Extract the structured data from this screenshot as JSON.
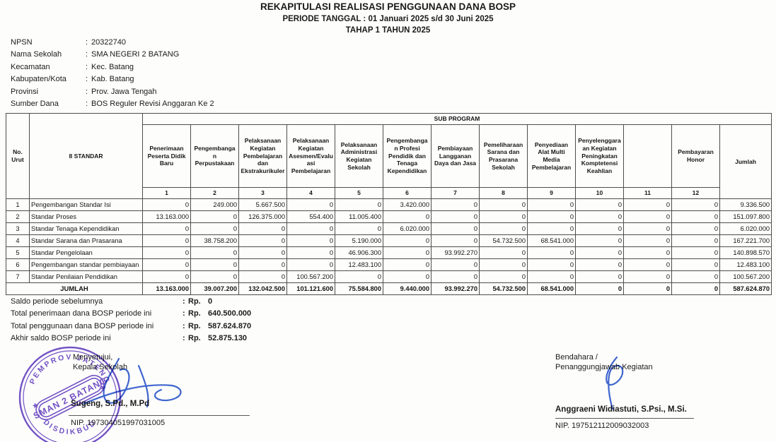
{
  "punct": {
    "colon": ":"
  },
  "colors": {
    "stamp": "#5b35be",
    "ink": "#2a55cc",
    "table_border": "#4d4d4d"
  },
  "header": {
    "title": "REKAPITULASI REALISASI PENGGUNAAN DANA BOSP",
    "subtitle1": "PERIODE TANGGAL : 01 Januari 2025 s/d 30 Juni 2025",
    "subtitle2": "TAHAP 1 TAHUN 2025"
  },
  "meta": {
    "rows": [
      {
        "label": "NPSN",
        "value": "20322740"
      },
      {
        "label": "Nama Sekolah",
        "value": "SMA NEGERI 2 BATANG"
      },
      {
        "label": "Kecamatan",
        "value": "Kec. Batang"
      },
      {
        "label": "Kabupaten/Kota",
        "value": "Kab. Batang"
      },
      {
        "label": "Provinsi",
        "value": "Prov. Jawa Tengah"
      },
      {
        "label": "Sumber Dana",
        "value": "BOS Reguler Revisi Anggaran Ke 2"
      }
    ]
  },
  "table": {
    "no_urut_header": "No. Urut",
    "standar_header": "8 STANDAR",
    "sub_program_header": "SUB PROGRAM",
    "jumlah_header": "Jumlah",
    "columns": [
      {
        "num": "1",
        "name": "Penerimaan Peserta Didik Baru"
      },
      {
        "num": "2",
        "name": "Pengembangan Perpustakaan"
      },
      {
        "num": "3",
        "name": "Pelaksanaan Kegiatan Pembelajaran dan Ekstrakurikuler"
      },
      {
        "num": "4",
        "name": "Pelaksanaan Kegiatan Asesmen/Evaluasi Pembelajaran"
      },
      {
        "num": "5",
        "name": "Pelaksanaan Administrasi Kegiatan Sekolah"
      },
      {
        "num": "6",
        "name": "Pengembangan Profesi Pendidik dan Tenaga Kependidikan"
      },
      {
        "num": "7",
        "name": "Pembiayaan Langganan Daya dan Jasa"
      },
      {
        "num": "8",
        "name": "Pemeliharaan Sarana dan Prasarana Sekolah"
      },
      {
        "num": "9",
        "name": "Penyediaan Alat Multi Media Pembelajaran"
      },
      {
        "num": "10",
        "name": "Penyelenggaraan Kegiatan Peningkatan Komptetensi Keahlian"
      },
      {
        "num": "11",
        "name": ""
      },
      {
        "num": "12",
        "name": "Pembayaran Honor"
      }
    ],
    "rows": [
      {
        "no": "1",
        "name": "Pengembangan Standar Isi",
        "values": [
          "0",
          "249.000",
          "5.667.500",
          "0",
          "0",
          "3.420.000",
          "0",
          "0",
          "0",
          "0",
          "0",
          "0"
        ],
        "total": "9.336.500"
      },
      {
        "no": "2",
        "name": "Standar Proses",
        "values": [
          "13.163.000",
          "0",
          "126.375.000",
          "554.400",
          "11.005.400",
          "0",
          "0",
          "0",
          "0",
          "0",
          "0",
          "0"
        ],
        "total": "151.097.800"
      },
      {
        "no": "3",
        "name": "Standar Tenaga Kependidikan",
        "values": [
          "0",
          "0",
          "0",
          "0",
          "0",
          "6.020.000",
          "0",
          "0",
          "0",
          "0",
          "0",
          "0"
        ],
        "total": "6.020.000"
      },
      {
        "no": "4",
        "name": "Standar Sarana dan Prasarana",
        "values": [
          "0",
          "38.758.200",
          "0",
          "0",
          "5.190.000",
          "0",
          "0",
          "54.732.500",
          "68.541.000",
          "0",
          "0",
          "0"
        ],
        "total": "167.221.700"
      },
      {
        "no": "5",
        "name": "Standar Pengelolaan",
        "values": [
          "0",
          "0",
          "0",
          "0",
          "46.906.300",
          "0",
          "93.992.270",
          "0",
          "0",
          "0",
          "0",
          "0"
        ],
        "total": "140.898.570"
      },
      {
        "no": "6",
        "name": "Pengembangan standar pembiayaan",
        "values": [
          "0",
          "0",
          "0",
          "0",
          "12.483.100",
          "0",
          "0",
          "0",
          "0",
          "0",
          "0",
          "0"
        ],
        "total": "12.483.100"
      },
      {
        "no": "7",
        "name": "Standar Penilaian Pendidikan",
        "values": [
          "0",
          "0",
          "0",
          "100.567.200",
          "0",
          "0",
          "0",
          "0",
          "0",
          "0",
          "0",
          "0"
        ],
        "total": "100.567.200"
      }
    ],
    "total_row": {
      "label": "JUMLAH",
      "values": [
        "13.163.000",
        "39.007.200",
        "132.042.500",
        "101.121.600",
        "75.584.800",
        "9.440.000",
        "93.992.270",
        "54.732.500",
        "68.541.000",
        "0",
        "0",
        "0"
      ],
      "total": "587.624.870"
    }
  },
  "summary": {
    "rows": [
      {
        "label": "Saldo periode sebelumnya",
        "currency": "Rp.",
        "value": "0"
      },
      {
        "label": "Total penerimaan dana BOSP periode ini",
        "currency": "Rp.",
        "value": "640.500.000"
      },
      {
        "label": "Total penggunaan dana BOSP periode ini",
        "currency": "Rp.",
        "value": "587.624.870"
      },
      {
        "label": "Akhir saldo BOSP periode ini",
        "currency": "Rp.",
        "value": "52.875.130"
      }
    ]
  },
  "signatures": {
    "left": {
      "line1": "Menyetujui,",
      "line2": "Kepala Sekolah",
      "name": "Sugeng, S.Pd., M.Pd",
      "nip": "NIP. 197304051997031005"
    },
    "right": {
      "line1": "Bendahara /",
      "line2": "Penanggungjawab Kegiatan",
      "name": "Anggraeni Widiastuti, S.Psi., M.Si.",
      "nip": "NIP. 197512112009032003"
    }
  },
  "stamp": {
    "top_text": "PEMPROV JATENG",
    "bottom_text": "DISDIKBUD",
    "center_text": "SMAN 2 BATANG",
    "star": "★"
  }
}
